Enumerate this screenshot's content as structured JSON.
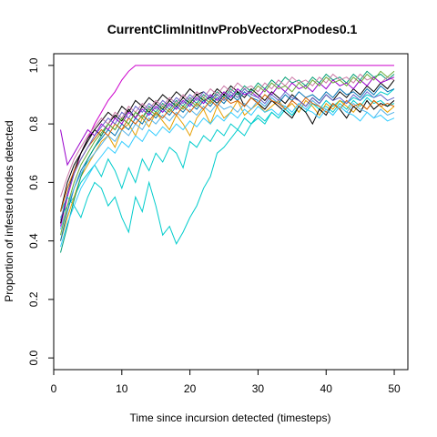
{
  "chart_data": {
    "type": "line",
    "title": "CurrentClimInitInvProbVectorxPnodes0.1",
    "xlabel": "Time since incursion detected (timesteps)",
    "ylabel": "Proportion of infested nodes detected",
    "xlim": [
      0,
      52
    ],
    "ylim": [
      -0.04,
      1.04
    ],
    "xticks": [
      0,
      10,
      20,
      30,
      40,
      50
    ],
    "yticks": [
      0.0,
      0.2,
      0.4,
      0.6,
      0.8,
      1.0
    ],
    "xtick_labels": [
      "0",
      "10",
      "20",
      "30",
      "40",
      "50"
    ],
    "ytick_labels": [
      "0.0",
      "0.2",
      "0.4",
      "0.6",
      "0.8",
      "1.0"
    ],
    "grid": false,
    "legend": "none",
    "x": [
      1,
      2,
      3,
      4,
      5,
      6,
      7,
      8,
      9,
      10,
      11,
      12,
      13,
      14,
      15,
      16,
      17,
      18,
      19,
      20,
      21,
      22,
      23,
      24,
      25,
      26,
      27,
      28,
      29,
      30,
      31,
      32,
      33,
      34,
      35,
      36,
      37,
      38,
      39,
      40,
      41,
      42,
      43,
      44,
      45,
      46,
      47,
      48,
      49,
      50
    ],
    "series": [
      {
        "color": "#CC00CC",
        "values": [
          0.45,
          0.55,
          0.63,
          0.7,
          0.75,
          0.8,
          0.84,
          0.88,
          0.91,
          0.95,
          0.98,
          1.0,
          1.0,
          1.0,
          1.0,
          1.0,
          1.0,
          1.0,
          1.0,
          1.0,
          1.0,
          1.0,
          1.0,
          1.0,
          1.0,
          1.0,
          1.0,
          1.0,
          1.0,
          1.0,
          1.0,
          1.0,
          1.0,
          1.0,
          1.0,
          1.0,
          1.0,
          1.0,
          1.0,
          1.0,
          1.0,
          1.0,
          1.0,
          1.0,
          1.0,
          1.0,
          1.0,
          1.0,
          1.0,
          1.0
        ]
      },
      {
        "color": "#00CCCC",
        "values": [
          0.5,
          0.55,
          0.52,
          0.48,
          0.55,
          0.6,
          0.58,
          0.52,
          0.55,
          0.48,
          0.43,
          0.55,
          0.5,
          0.6,
          0.52,
          0.42,
          0.45,
          0.39,
          0.43,
          0.48,
          0.52,
          0.58,
          0.62,
          0.7,
          0.72,
          0.75,
          0.78,
          0.76,
          0.8,
          0.82,
          0.8,
          0.84,
          0.82,
          0.85,
          0.83,
          0.86,
          0.84,
          0.87,
          0.85,
          0.88,
          0.86,
          0.88,
          0.87,
          0.89,
          0.88,
          0.9,
          0.89,
          0.91,
          0.9,
          0.92
        ]
      },
      {
        "color": "#00CCCC",
        "values": [
          0.48,
          0.52,
          0.55,
          0.6,
          0.63,
          0.66,
          0.62,
          0.68,
          0.64,
          0.58,
          0.65,
          0.6,
          0.68,
          0.64,
          0.7,
          0.67,
          0.72,
          0.7,
          0.65,
          0.74,
          0.72,
          0.76,
          0.74,
          0.78,
          0.76,
          0.8,
          0.78,
          0.82,
          0.8,
          0.83,
          0.81,
          0.84,
          0.82,
          0.85,
          0.83,
          0.86,
          0.84,
          0.87,
          0.85,
          0.86,
          0.84,
          0.87,
          0.85,
          0.88,
          0.86,
          0.89,
          0.87,
          0.88,
          0.86,
          0.87
        ]
      },
      {
        "color": "#E69F00",
        "values": [
          0.4,
          0.48,
          0.55,
          0.62,
          0.66,
          0.7,
          0.74,
          0.76,
          0.72,
          0.78,
          0.8,
          0.76,
          0.82,
          0.79,
          0.84,
          0.81,
          0.78,
          0.83,
          0.8,
          0.76,
          0.82,
          0.85,
          0.8,
          0.86,
          0.82,
          0.84,
          0.88,
          0.83,
          0.85,
          0.87,
          0.84,
          0.86,
          0.88,
          0.85,
          0.87,
          0.84,
          0.88,
          0.86,
          0.83,
          0.87,
          0.85,
          0.88,
          0.86,
          0.84,
          0.87,
          0.85,
          0.88,
          0.86,
          0.84,
          0.86
        ]
      },
      {
        "color": "#000000",
        "values": [
          0.5,
          0.6,
          0.66,
          0.7,
          0.74,
          0.78,
          0.76,
          0.8,
          0.83,
          0.81,
          0.85,
          0.82,
          0.86,
          0.84,
          0.87,
          0.85,
          0.88,
          0.86,
          0.89,
          0.87,
          0.9,
          0.88,
          0.89,
          0.87,
          0.9,
          0.88,
          0.91,
          0.86,
          0.89,
          0.87,
          0.85,
          0.88,
          0.86,
          0.84,
          0.82,
          0.86,
          0.84,
          0.8,
          0.85,
          0.83,
          0.87,
          0.85,
          0.82,
          0.86,
          0.84,
          0.88,
          0.85,
          0.87,
          0.86,
          0.88
        ]
      },
      {
        "color": "#000000",
        "values": [
          0.46,
          0.56,
          0.64,
          0.7,
          0.75,
          0.78,
          0.81,
          0.84,
          0.82,
          0.86,
          0.84,
          0.88,
          0.86,
          0.89,
          0.87,
          0.9,
          0.88,
          0.91,
          0.89,
          0.92,
          0.9,
          0.91,
          0.89,
          0.92,
          0.9,
          0.93,
          0.91,
          0.89,
          0.92,
          0.9,
          0.88,
          0.91,
          0.89,
          0.87,
          0.9,
          0.88,
          0.86,
          0.89,
          0.87,
          0.9,
          0.88,
          0.91,
          0.89,
          0.92,
          0.9,
          0.93,
          0.91,
          0.94,
          0.92,
          0.95
        ]
      },
      {
        "color": "#0072B2",
        "values": [
          0.4,
          0.5,
          0.58,
          0.64,
          0.68,
          0.72,
          0.75,
          0.78,
          0.76,
          0.8,
          0.78,
          0.82,
          0.8,
          0.84,
          0.82,
          0.85,
          0.83,
          0.86,
          0.84,
          0.87,
          0.85,
          0.88,
          0.86,
          0.89,
          0.87,
          0.9,
          0.88,
          0.91,
          0.89,
          0.88,
          0.86,
          0.89,
          0.87,
          0.9,
          0.88,
          0.91,
          0.89,
          0.9,
          0.88,
          0.91,
          0.89,
          0.92,
          0.9,
          0.91,
          0.89,
          0.92,
          0.9,
          0.93,
          0.91,
          0.92
        ]
      },
      {
        "color": "#009E73",
        "values": [
          0.36,
          0.45,
          0.54,
          0.62,
          0.68,
          0.72,
          0.76,
          0.8,
          0.78,
          0.82,
          0.8,
          0.84,
          0.82,
          0.86,
          0.84,
          0.87,
          0.85,
          0.88,
          0.86,
          0.89,
          0.87,
          0.9,
          0.88,
          0.91,
          0.89,
          0.92,
          0.9,
          0.93,
          0.91,
          0.94,
          0.92,
          0.95,
          0.93,
          0.96,
          0.94,
          0.95,
          0.93,
          0.96,
          0.94,
          0.97,
          0.95,
          0.96,
          0.94,
          0.97,
          0.95,
          0.98,
          0.96,
          0.97,
          0.95,
          0.97
        ]
      },
      {
        "color": "#CC79A7",
        "values": [
          0.55,
          0.62,
          0.68,
          0.72,
          0.76,
          0.79,
          0.82,
          0.8,
          0.84,
          0.82,
          0.86,
          0.84,
          0.87,
          0.85,
          0.88,
          0.86,
          0.89,
          0.87,
          0.9,
          0.88,
          0.91,
          0.89,
          0.92,
          0.9,
          0.93,
          0.91,
          0.94,
          0.92,
          0.93,
          0.91,
          0.94,
          0.92,
          0.95,
          0.93,
          0.96,
          0.94,
          0.95,
          0.93,
          0.96,
          0.94,
          0.97,
          0.95,
          0.96,
          0.94,
          0.97,
          0.95,
          0.96,
          0.94,
          0.96,
          0.95
        ]
      },
      {
        "color": "#56B4E9",
        "values": [
          0.44,
          0.52,
          0.58,
          0.63,
          0.67,
          0.7,
          0.73,
          0.76,
          0.74,
          0.78,
          0.76,
          0.8,
          0.78,
          0.82,
          0.8,
          0.83,
          0.81,
          0.84,
          0.82,
          0.85,
          0.83,
          0.86,
          0.84,
          0.87,
          0.85,
          0.86,
          0.84,
          0.87,
          0.85,
          0.88,
          0.86,
          0.89,
          0.87,
          0.86,
          0.84,
          0.87,
          0.85,
          0.88,
          0.86,
          0.85,
          0.83,
          0.86,
          0.84,
          0.87,
          0.85,
          0.84,
          0.82,
          0.85,
          0.83,
          0.84
        ]
      },
      {
        "color": "#D55E00",
        "values": [
          0.5,
          0.58,
          0.64,
          0.68,
          0.72,
          0.75,
          0.78,
          0.76,
          0.8,
          0.78,
          0.82,
          0.8,
          0.83,
          0.81,
          0.84,
          0.82,
          0.85,
          0.83,
          0.86,
          0.84,
          0.87,
          0.85,
          0.88,
          0.86,
          0.89,
          0.87,
          0.88,
          0.86,
          0.89,
          0.87,
          0.9,
          0.88,
          0.87,
          0.85,
          0.88,
          0.86,
          0.89,
          0.87,
          0.86,
          0.84,
          0.87,
          0.85,
          0.88,
          0.86,
          0.87,
          0.85,
          0.88,
          0.86,
          0.87,
          0.86
        ]
      },
      {
        "color": "#9900CC",
        "values": [
          0.78,
          0.66,
          0.7,
          0.74,
          0.78,
          0.76,
          0.8,
          0.78,
          0.82,
          0.8,
          0.84,
          0.82,
          0.85,
          0.83,
          0.86,
          0.84,
          0.87,
          0.85,
          0.88,
          0.86,
          0.89,
          0.87,
          0.9,
          0.88,
          0.91,
          0.89,
          0.92,
          0.9,
          0.91,
          0.89,
          0.92,
          0.9,
          0.93,
          0.91,
          0.94,
          0.92,
          0.93,
          0.91,
          0.94,
          0.92,
          0.95,
          0.93,
          0.94,
          0.92,
          0.95,
          0.93,
          0.96,
          0.94,
          0.95,
          0.96
        ]
      },
      {
        "color": "#33CCFF",
        "values": [
          0.38,
          0.46,
          0.52,
          0.58,
          0.62,
          0.66,
          0.69,
          0.72,
          0.7,
          0.74,
          0.72,
          0.76,
          0.74,
          0.78,
          0.76,
          0.79,
          0.77,
          0.8,
          0.78,
          0.81,
          0.79,
          0.82,
          0.8,
          0.83,
          0.81,
          0.84,
          0.82,
          0.85,
          0.83,
          0.86,
          0.84,
          0.85,
          0.83,
          0.86,
          0.84,
          0.87,
          0.85,
          0.84,
          0.82,
          0.85,
          0.83,
          0.86,
          0.84,
          0.83,
          0.81,
          0.84,
          0.82,
          0.83,
          0.81,
          0.82
        ]
      },
      {
        "color": "#66AA33",
        "values": [
          0.42,
          0.52,
          0.6,
          0.66,
          0.7,
          0.74,
          0.77,
          0.8,
          0.78,
          0.82,
          0.8,
          0.84,
          0.82,
          0.85,
          0.83,
          0.86,
          0.84,
          0.87,
          0.85,
          0.88,
          0.86,
          0.89,
          0.87,
          0.9,
          0.88,
          0.91,
          0.89,
          0.92,
          0.9,
          0.93,
          0.91,
          0.94,
          0.92,
          0.93,
          0.91,
          0.94,
          0.92,
          0.95,
          0.93,
          0.96,
          0.94,
          0.95,
          0.93,
          0.96,
          0.94,
          0.97,
          0.95,
          0.98,
          0.96,
          0.98
        ]
      },
      {
        "color": "#6666CC",
        "values": [
          0.47,
          0.56,
          0.63,
          0.68,
          0.72,
          0.76,
          0.79,
          0.82,
          0.8,
          0.84,
          0.82,
          0.86,
          0.84,
          0.87,
          0.85,
          0.88,
          0.86,
          0.89,
          0.87,
          0.9,
          0.88,
          0.91,
          0.89,
          0.9,
          0.88,
          0.91,
          0.89,
          0.92,
          0.9,
          0.89,
          0.87,
          0.9,
          0.88,
          0.91,
          0.89,
          0.88,
          0.86,
          0.89,
          0.87,
          0.9,
          0.88,
          0.89,
          0.87,
          0.9,
          0.88,
          0.91,
          0.89,
          0.9,
          0.88,
          0.89
        ]
      }
    ]
  }
}
